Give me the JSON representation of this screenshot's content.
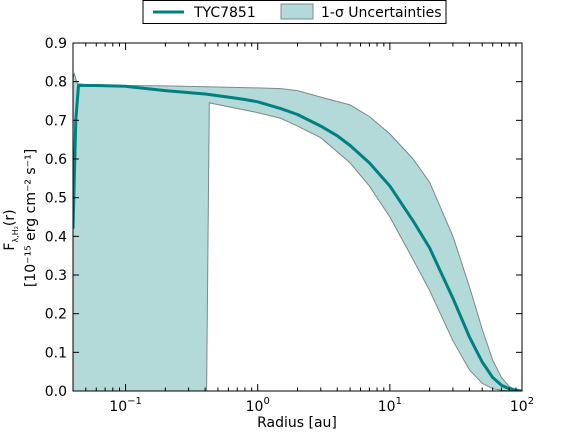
{
  "chart_data": {
    "type": "line",
    "title": "",
    "xlabel": "Radius [au]",
    "ylabel_line1": "F",
    "ylabel_subscript": "λ,H₂",
    "ylabel_line1_suffix": "(r)",
    "ylabel_line2": "[10⁻¹⁵ erg cm⁻² s⁻¹]",
    "x_scale": "log",
    "xlim": [
      0.04,
      100
    ],
    "ylim": [
      0.0,
      0.9
    ],
    "grid": false,
    "legend_position": "top-center, outside plot",
    "x_ticks": [
      {
        "value": 0.1,
        "base": "10",
        "exp": "−1"
      },
      {
        "value": 1,
        "base": "10",
        "exp": "0"
      },
      {
        "value": 10,
        "base": "10",
        "exp": "1"
      },
      {
        "value": 100,
        "base": "10",
        "exp": "2"
      }
    ],
    "y_ticks": [
      "0.0",
      "0.1",
      "0.2",
      "0.3",
      "0.4",
      "0.5",
      "0.6",
      "0.7",
      "0.8",
      "0.9"
    ],
    "series": [
      {
        "name": "TYC7851",
        "kind": "line",
        "color": "#008080",
        "x": [
          0.04,
          0.042,
          0.044,
          0.06,
          0.1,
          0.2,
          0.4,
          0.6,
          0.8,
          1,
          1.5,
          2,
          3,
          4,
          5,
          7,
          10,
          15,
          20,
          30,
          40,
          50,
          60,
          70,
          80,
          90,
          100
        ],
        "y": [
          0.42,
          0.7,
          0.79,
          0.79,
          0.788,
          0.777,
          0.768,
          0.76,
          0.754,
          0.748,
          0.73,
          0.715,
          0.685,
          0.66,
          0.635,
          0.59,
          0.53,
          0.44,
          0.37,
          0.24,
          0.14,
          0.075,
          0.035,
          0.015,
          0.006,
          0.002,
          0.0
        ]
      },
      {
        "name": "1-σ Uncertainties",
        "kind": "band",
        "fill": "#b3d9d9",
        "edge": "#7a8a8a",
        "upper_x": [
          0.04,
          0.041,
          0.043,
          0.06,
          0.1,
          0.2,
          0.4,
          1,
          1.5,
          2,
          3,
          5,
          7,
          10,
          15,
          20,
          30,
          40,
          50,
          60,
          70,
          80,
          90,
          100
        ],
        "upper_y": [
          0.81,
          0.82,
          0.795,
          0.79,
          0.79,
          0.789,
          0.787,
          0.784,
          0.782,
          0.777,
          0.76,
          0.74,
          0.71,
          0.665,
          0.6,
          0.54,
          0.4,
          0.27,
          0.16,
          0.08,
          0.035,
          0.012,
          0.003,
          0.0
        ],
        "lower_x": [
          0.04,
          0.41,
          0.43,
          1,
          1.5,
          2,
          3,
          5,
          7,
          10,
          15,
          20,
          30,
          40,
          50,
          60,
          70,
          80,
          90,
          100
        ],
        "lower_y": [
          0.0,
          0.0,
          0.745,
          0.72,
          0.705,
          0.685,
          0.655,
          0.59,
          0.53,
          0.45,
          0.34,
          0.26,
          0.13,
          0.055,
          0.02,
          0.006,
          0.002,
          0.0,
          0.0,
          0.0
        ]
      }
    ]
  }
}
